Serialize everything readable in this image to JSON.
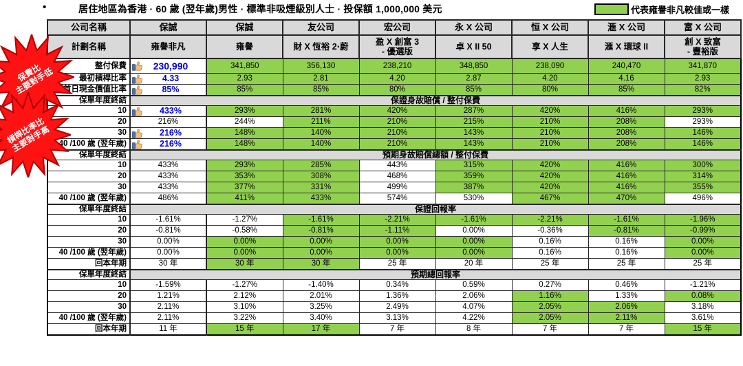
{
  "title": "居住地區為香港 · 60 歲 (翌年歲)男性 · 標準非吸煙級別人士 · 投保額 1,000,000 美元",
  "legend": {
    "label": "代表雍譽非凡較佳或一樣",
    "color": "#92D050"
  },
  "badges": [
    {
      "lines": "保費比\n主要對手低"
    },
    {
      "lines": "槓桿比率比\n主要對手高"
    }
  ],
  "colors": {
    "better_or_same": "#92D050",
    "header_gray": "#D9D9D9",
    "highlight_blue": "#0000E0",
    "badge_red": "#FF1212"
  },
  "table": {
    "company_row_label": "公司名稱",
    "plan_row_label": "計劃名稱",
    "companies": [
      "保誠",
      "保誠",
      "友公司",
      "宏公司",
      "永 X 公司",
      "恒 X 公司",
      "滙 X 公司",
      "富 X 公司"
    ],
    "plans": [
      "雍譽非凡",
      "雍譽",
      "財 X 恆裕 2‧蔚",
      "盈 X 創富 3\n- 優選版",
      "卓 X II 50",
      "享 X 人生",
      "滙 X 環球 II",
      "創 X 致富\n- 豐裕版"
    ],
    "rows": [
      {
        "type": "data",
        "cls": "prem",
        "label": "整付保費",
        "cells": [
          {
            "v": "230,990",
            "t": 1
          },
          {
            "v": "341,850",
            "g": 1
          },
          {
            "v": "356,130",
            "g": 1
          },
          {
            "v": "238,210",
            "g": 1
          },
          {
            "v": "348,850",
            "g": 1
          },
          {
            "v": "238,090",
            "g": 1
          },
          {
            "v": "240,470",
            "g": 1
          },
          {
            "v": "341,870",
            "g": 1
          }
        ]
      },
      {
        "type": "data",
        "label": "最初槓桿比率",
        "cells": [
          {
            "v": "4.33",
            "t": 1
          },
          {
            "v": "2.93",
            "g": 1
          },
          {
            "v": "2.81",
            "g": 1
          },
          {
            "v": "4.20",
            "g": 1
          },
          {
            "v": "2.87",
            "g": 1
          },
          {
            "v": "4.20",
            "g": 1
          },
          {
            "v": "4.16",
            "g": 1
          },
          {
            "v": "2.93",
            "g": 1
          }
        ]
      },
      {
        "type": "data",
        "label": "首日現金價值比率",
        "cells": [
          {
            "v": "85%",
            "t": 1
          },
          {
            "v": "85%",
            "g": 1
          },
          {
            "v": "85%",
            "g": 1
          },
          {
            "v": "80%",
            "g": 1
          },
          {
            "v": "85%",
            "g": 1
          },
          {
            "v": "80%",
            "g": 1
          },
          {
            "v": "85%",
            "g": 1
          },
          {
            "v": "82%",
            "g": 1
          }
        ]
      },
      {
        "type": "section",
        "label": "保單年度終結",
        "title": "保證身故賠償 / 整付保費"
      },
      {
        "type": "data",
        "label": "10",
        "cells": [
          {
            "v": "433%",
            "t": 1
          },
          {
            "v": "293%",
            "g": 1
          },
          {
            "v": "281%",
            "g": 1
          },
          {
            "v": "420%",
            "g": 1
          },
          {
            "v": "287%",
            "g": 1
          },
          {
            "v": "420%",
            "g": 1
          },
          {
            "v": "416%",
            "g": 1
          },
          {
            "v": "293%",
            "g": 1
          }
        ]
      },
      {
        "type": "data",
        "label": "20",
        "cells": [
          {
            "v": "216%"
          },
          {
            "v": "244%"
          },
          {
            "v": "211%",
            "g": 1
          },
          {
            "v": "210%",
            "g": 1
          },
          {
            "v": "215%",
            "g": 1
          },
          {
            "v": "210%",
            "g": 1
          },
          {
            "v": "208%",
            "g": 1
          },
          {
            "v": "293%"
          }
        ]
      },
      {
        "type": "data",
        "label": "30",
        "cells": [
          {
            "v": "216%",
            "t": 1
          },
          {
            "v": "148%",
            "g": 1
          },
          {
            "v": "140%",
            "g": 1
          },
          {
            "v": "210%",
            "g": 1
          },
          {
            "v": "143%",
            "g": 1
          },
          {
            "v": "210%",
            "g": 1
          },
          {
            "v": "208%",
            "g": 1
          },
          {
            "v": "146%",
            "g": 1
          }
        ]
      },
      {
        "type": "data",
        "label": "40 /100 歲 (翌年歲)",
        "cells": [
          {
            "v": "216%",
            "t": 1
          },
          {
            "v": "148%",
            "g": 1
          },
          {
            "v": "140%",
            "g": 1
          },
          {
            "v": "210%",
            "g": 1
          },
          {
            "v": "143%",
            "g": 1
          },
          {
            "v": "210%",
            "g": 1
          },
          {
            "v": "208%",
            "g": 1
          },
          {
            "v": "146%",
            "g": 1
          }
        ]
      },
      {
        "type": "section",
        "label": "保單年度終結",
        "title": "預期身故賠償總額 / 整付保費"
      },
      {
        "type": "data",
        "label": "10",
        "cells": [
          {
            "v": "433%"
          },
          {
            "v": "293%",
            "g": 1
          },
          {
            "v": "285%",
            "g": 1
          },
          {
            "v": "443%"
          },
          {
            "v": "315%",
            "g": 1
          },
          {
            "v": "420%",
            "g": 1
          },
          {
            "v": "416%",
            "g": 1
          },
          {
            "v": "300%",
            "g": 1
          }
        ]
      },
      {
        "type": "data",
        "label": "20",
        "cells": [
          {
            "v": "433%"
          },
          {
            "v": "353%",
            "g": 1
          },
          {
            "v": "308%",
            "g": 1
          },
          {
            "v": "468%"
          },
          {
            "v": "359%",
            "g": 1
          },
          {
            "v": "420%",
            "g": 1
          },
          {
            "v": "416%",
            "g": 1
          },
          {
            "v": "314%",
            "g": 1
          }
        ]
      },
      {
        "type": "data",
        "label": "30",
        "cells": [
          {
            "v": "433%"
          },
          {
            "v": "377%",
            "g": 1
          },
          {
            "v": "331%",
            "g": 1
          },
          {
            "v": "499%"
          },
          {
            "v": "387%",
            "g": 1
          },
          {
            "v": "420%",
            "g": 1
          },
          {
            "v": "416%",
            "g": 1
          },
          {
            "v": "355%",
            "g": 1
          }
        ]
      },
      {
        "type": "data",
        "label": "40 /100 歲 (翌年歲)",
        "cells": [
          {
            "v": "486%"
          },
          {
            "v": "411%",
            "g": 1
          },
          {
            "v": "433%",
            "g": 1
          },
          {
            "v": "574%"
          },
          {
            "v": "530%"
          },
          {
            "v": "467%",
            "g": 1
          },
          {
            "v": "470%",
            "g": 1
          },
          {
            "v": "496%"
          }
        ]
      },
      {
        "type": "section",
        "label": "保單年度終結",
        "title": "保證回報率"
      },
      {
        "type": "data",
        "label": "10",
        "cells": [
          {
            "v": "-1.61%"
          },
          {
            "v": "-1.27%"
          },
          {
            "v": "-1.61%",
            "g": 1
          },
          {
            "v": "-2.21%",
            "g": 1
          },
          {
            "v": "-1.61%",
            "g": 1
          },
          {
            "v": "-2.21%",
            "g": 1
          },
          {
            "v": "-1.61%",
            "g": 1
          },
          {
            "v": "-1.96%",
            "g": 1
          }
        ]
      },
      {
        "type": "data",
        "label": "20",
        "cells": [
          {
            "v": "-0.81%"
          },
          {
            "v": "-0.58%"
          },
          {
            "v": "-0.81%",
            "g": 1
          },
          {
            "v": "-1.11%",
            "g": 1
          },
          {
            "v": "0.00%"
          },
          {
            "v": "-0.36%"
          },
          {
            "v": "-0.81%",
            "g": 1
          },
          {
            "v": "-0.99%",
            "g": 1
          }
        ]
      },
      {
        "type": "data",
        "label": "30",
        "cells": [
          {
            "v": "0.00%"
          },
          {
            "v": "0.00%",
            "g": 1
          },
          {
            "v": "0.00%",
            "g": 1
          },
          {
            "v": "0.00%",
            "g": 1
          },
          {
            "v": "0.00%",
            "g": 1
          },
          {
            "v": "0.16%"
          },
          {
            "v": "0.16%"
          },
          {
            "v": "0.00%",
            "g": 1
          }
        ]
      },
      {
        "type": "data",
        "label": "40 /100 歲 (翌年歲)",
        "cells": [
          {
            "v": "0.00%"
          },
          {
            "v": "0.00%",
            "g": 1
          },
          {
            "v": "0.00%",
            "g": 1
          },
          {
            "v": "0.00%",
            "g": 1
          },
          {
            "v": "0.00%",
            "g": 1
          },
          {
            "v": "0.16%"
          },
          {
            "v": "0.16%"
          },
          {
            "v": "0.00%",
            "g": 1
          }
        ]
      },
      {
        "type": "data",
        "label": "回本年期",
        "cells": [
          {
            "v": "30 年"
          },
          {
            "v": "30 年",
            "g": 1
          },
          {
            "v": "30 年",
            "g": 1
          },
          {
            "v": "25 年"
          },
          {
            "v": "20 年"
          },
          {
            "v": "25 年"
          },
          {
            "v": "25 年"
          },
          {
            "v": "25 年"
          }
        ]
      },
      {
        "type": "section",
        "label": "保單年度終結",
        "title": "預期總回報率"
      },
      {
        "type": "data",
        "label": "10",
        "cells": [
          {
            "v": "-1.59%"
          },
          {
            "v": "-1.27%"
          },
          {
            "v": "-1.40%"
          },
          {
            "v": "0.34%"
          },
          {
            "v": "0.59%"
          },
          {
            "v": "0.27%"
          },
          {
            "v": "0.46%"
          },
          {
            "v": "-1.21%"
          }
        ]
      },
      {
        "type": "data",
        "label": "20",
        "cells": [
          {
            "v": "1.21%"
          },
          {
            "v": "2.12%"
          },
          {
            "v": "2.01%"
          },
          {
            "v": "1.36%"
          },
          {
            "v": "2.06%"
          },
          {
            "v": "1.16%",
            "g": 1
          },
          {
            "v": "1.33%"
          },
          {
            "v": "0.08%",
            "g": 1
          }
        ]
      },
      {
        "type": "data",
        "label": "30",
        "cells": [
          {
            "v": "2.11%"
          },
          {
            "v": "3.10%"
          },
          {
            "v": "3.25%"
          },
          {
            "v": "2.49%"
          },
          {
            "v": "4.07%"
          },
          {
            "v": "2.05%",
            "g": 1
          },
          {
            "v": "2.06%",
            "g": 1
          },
          {
            "v": "3.18%"
          }
        ]
      },
      {
        "type": "data",
        "label": "40 /100 歲 (翌年歲)",
        "cells": [
          {
            "v": "2.11%"
          },
          {
            "v": "3.22%"
          },
          {
            "v": "3.40%"
          },
          {
            "v": "3.13%"
          },
          {
            "v": "4.22%"
          },
          {
            "v": "2.05%",
            "g": 1
          },
          {
            "v": "2.11%",
            "g": 1
          },
          {
            "v": "3.61%"
          }
        ]
      },
      {
        "type": "data",
        "label": "回本年期",
        "cells": [
          {
            "v": "11 年"
          },
          {
            "v": "15 年",
            "g": 1
          },
          {
            "v": "17 年",
            "g": 1
          },
          {
            "v": "7 年"
          },
          {
            "v": "8 年"
          },
          {
            "v": "7 年"
          },
          {
            "v": "7 年"
          },
          {
            "v": "15 年",
            "g": 1
          }
        ]
      }
    ]
  }
}
